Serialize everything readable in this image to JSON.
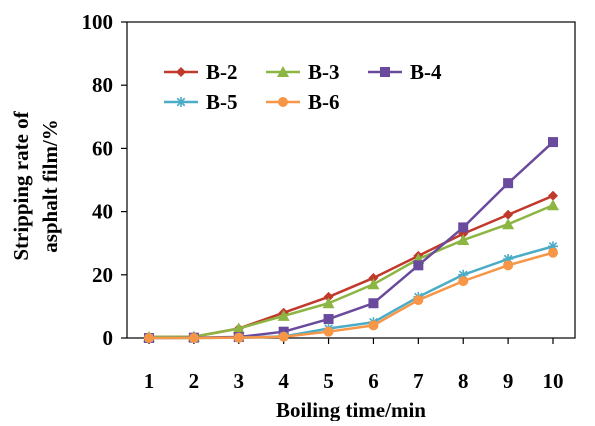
{
  "chart_data": {
    "type": "line",
    "title": "",
    "xlabel": "Boiling time/min",
    "ylabel_lines": [
      "Stripping rate of",
      "asphalt film/%"
    ],
    "x": [
      1,
      2,
      3,
      4,
      5,
      6,
      7,
      8,
      9,
      10
    ],
    "xlim": [
      1,
      10
    ],
    "ylim": [
      0,
      100
    ],
    "yticks": [
      0,
      20,
      40,
      60,
      80,
      100
    ],
    "grid": false,
    "legend_position": "top-left",
    "series": [
      {
        "name": "B-2",
        "marker": "diamond",
        "color": "#c0392b",
        "values": [
          0.3,
          0.4,
          3,
          8,
          13,
          19,
          26,
          33,
          39,
          45
        ]
      },
      {
        "name": "B-3",
        "marker": "triangle",
        "color": "#8db543",
        "values": [
          0.3,
          0.4,
          3,
          7,
          11,
          17,
          25,
          31,
          36,
          42
        ]
      },
      {
        "name": "B-4",
        "marker": "square",
        "color": "#6a4a9c",
        "values": [
          0,
          0.1,
          0.3,
          2,
          6,
          11,
          23,
          35,
          49,
          62
        ]
      },
      {
        "name": "B-5",
        "marker": "star",
        "color": "#4bacc6",
        "values": [
          0,
          0,
          0.1,
          0.5,
          3,
          5,
          13,
          20,
          25,
          29
        ]
      },
      {
        "name": "B-6",
        "marker": "circle",
        "color": "#f79646",
        "values": [
          0,
          0,
          0.1,
          0.4,
          2,
          4,
          12,
          18,
          23,
          27
        ]
      }
    ]
  }
}
